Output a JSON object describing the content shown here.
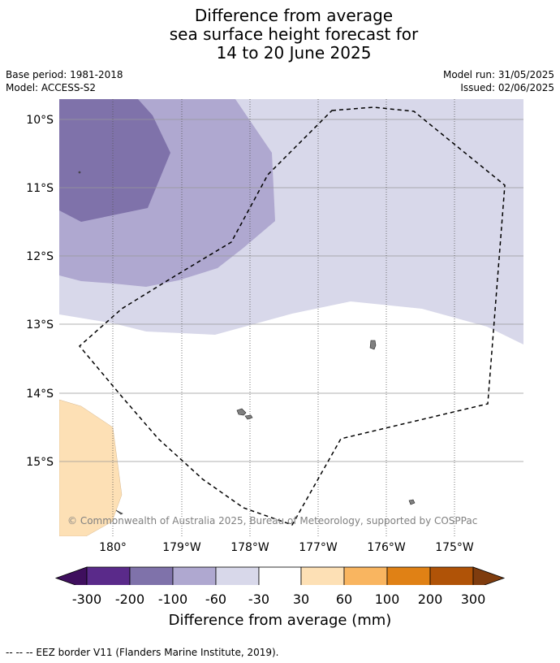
{
  "title": {
    "line1": "Difference from average",
    "line2": "sea surface height forecast for",
    "line3": "14 to 20 June 2025"
  },
  "meta": {
    "base_period": "Base period: 1981-2018",
    "model": "Model: ACCESS-S2",
    "model_run": "Model run: 31/05/2025",
    "issued": "Issued: 02/06/2025"
  },
  "map": {
    "latitude_labels": [
      "10°S",
      "11°S",
      "12°S",
      "13°S",
      "14°S",
      "15°S"
    ],
    "longitude_labels": [
      "180°",
      "179°W",
      "178°W",
      "177°W",
      "176°W",
      "175°W"
    ],
    "copyright": "© Commonwealth of Australia 2025, Bureau of Meteorology, supported by COSPPac",
    "eez_line_color": "#000000"
  },
  "colorbar": {
    "ticks": [
      "-300",
      "-200",
      "-100",
      "-60",
      "-30",
      "30",
      "60",
      "100",
      "200",
      "300"
    ],
    "colors": [
      "#3f0f5e",
      "#5a2a8a",
      "#7f72aa",
      "#afa8d0",
      "#d8d8ea",
      "#ffffff",
      "#fde0b5",
      "#f9b560",
      "#e08115",
      "#b05307",
      "#7f3c0e"
    ],
    "label": "Difference from average (mm)"
  },
  "footer": "-- -- -- EEZ border V11 (Flanders Marine Institute, 2019)."
}
